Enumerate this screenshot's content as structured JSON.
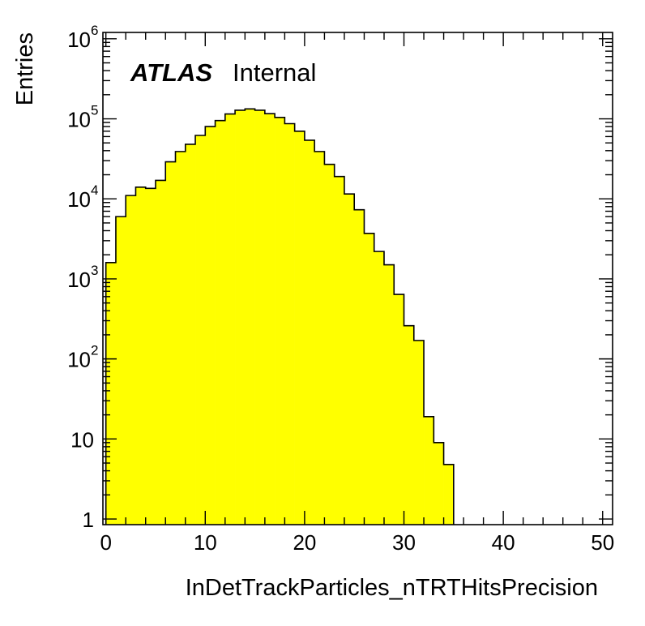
{
  "chart_data": {
    "type": "bar",
    "histogram": true,
    "xlabel": "InDetTrackParticles_nTRTHitsPrecision",
    "ylabel": "Entries",
    "xlim": [
      -0.3,
      51
    ],
    "ylim": [
      0.85,
      1200000
    ],
    "y_scale": "log",
    "grid": false,
    "fill_color": "#ffff00",
    "line_color": "#000000",
    "atlas_label": "ATLAS",
    "atlas_suffix": "Internal",
    "x_ticks": [
      0,
      10,
      20,
      30,
      40,
      50
    ],
    "x_tick_labels": [
      "0",
      "10",
      "20",
      "30",
      "40",
      "50"
    ],
    "y_ticks": [
      {
        "value": 1,
        "base": "1",
        "exp": ""
      },
      {
        "value": 10,
        "base": "10",
        "exp": ""
      },
      {
        "value": 100,
        "base": "10",
        "exp": "2"
      },
      {
        "value": 1000,
        "base": "10",
        "exp": "3"
      },
      {
        "value": 10000,
        "base": "10",
        "exp": "4"
      },
      {
        "value": 100000,
        "base": "10",
        "exp": "5"
      },
      {
        "value": 1000000,
        "base": "10",
        "exp": "6"
      }
    ],
    "bin_edges": [
      0,
      1,
      2,
      3,
      4,
      5,
      6,
      7,
      8,
      9,
      10,
      11,
      12,
      13,
      14,
      15,
      16,
      17,
      18,
      19,
      20,
      21,
      22,
      23,
      24,
      25,
      26,
      27,
      28,
      29,
      30,
      31,
      32,
      33,
      34,
      35
    ],
    "values": [
      1600,
      6000,
      11000,
      14000,
      13500,
      17000,
      29000,
      39000,
      48000,
      62000,
      80000,
      95000,
      115000,
      128000,
      133000,
      128000,
      116000,
      104000,
      87000,
      70000,
      54000,
      39000,
      27000,
      19000,
      11500,
      7300,
      3700,
      2200,
      1500,
      640,
      260,
      170,
      19,
      9,
      4.8
    ]
  }
}
